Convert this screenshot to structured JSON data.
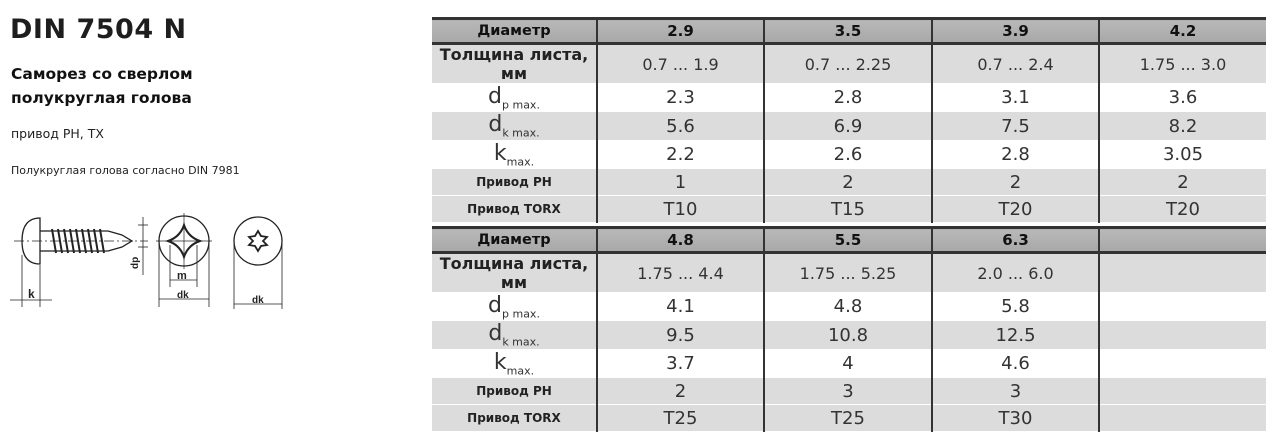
{
  "header": {
    "title": "DIN 7504 N",
    "subtitle_line1": "Саморез со сверлом",
    "subtitle_line2": "полукруглая голова",
    "drive": "привод PH, TX",
    "note": "Полукруглая голова согласно DIN 7981"
  },
  "drawing": {
    "label_k": "k",
    "label_dp": "dp",
    "label_m": "m",
    "label_dk_phillips": "dk",
    "label_dk_torx": "dk"
  },
  "row_labels": [
    {
      "main": "Диаметр",
      "sub": ""
    },
    {
      "main": "Толщина листа, мм",
      "sub": ""
    },
    {
      "main": "d",
      "sub": "p max."
    },
    {
      "main": "d",
      "sub": "k max."
    },
    {
      "main": "k",
      "sub": "max."
    },
    {
      "main": "Привод PH",
      "sub": ""
    },
    {
      "main": "Привод TORX",
      "sub": ""
    }
  ],
  "tables": [
    {
      "columns": [
        {
          "diameter": "2.9",
          "sheet": "0.7  ...  1.9",
          "dp": "2.3",
          "dk": "5.6",
          "k": "2.2",
          "ph": "1",
          "torx": "T10"
        },
        {
          "diameter": "3.5",
          "sheet": "0.7  ...  2.25",
          "dp": "2.8",
          "dk": "6.9",
          "k": "2.6",
          "ph": "2",
          "torx": "T15"
        },
        {
          "diameter": "3.9",
          "sheet": "0.7  ...  2.4",
          "dp": "3.1",
          "dk": "7.5",
          "k": "2.8",
          "ph": "2",
          "torx": "T20"
        },
        {
          "diameter": "4.2",
          "sheet": "1.75  ...  3.0",
          "dp": "3.6",
          "dk": "8.2",
          "k": "3.05",
          "ph": "2",
          "torx": "T20"
        }
      ]
    },
    {
      "columns": [
        {
          "diameter": "4.8",
          "sheet": "1.75  ...  4.4",
          "dp": "4.1",
          "dk": "9.5",
          "k": "3.7",
          "ph": "2",
          "torx": "T25"
        },
        {
          "diameter": "5.5",
          "sheet": "1.75  ...  5.25",
          "dp": "4.8",
          "dk": "10.8",
          "k": "4",
          "ph": "3",
          "torx": "T25"
        },
        {
          "diameter": "6.3",
          "sheet": "2.0  ...  6.0",
          "dp": "5.8",
          "dk": "12.5",
          "k": "4.6",
          "ph": "3",
          "torx": "T30"
        },
        {
          "diameter": "",
          "sheet": "",
          "dp": "",
          "dk": "",
          "k": "",
          "ph": "",
          "torx": ""
        }
      ]
    }
  ]
}
